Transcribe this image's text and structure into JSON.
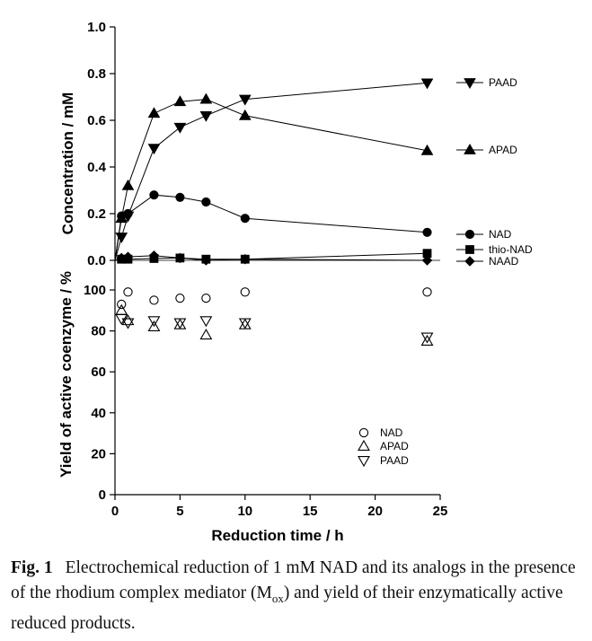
{
  "chart_data": [
    {
      "type": "line",
      "panel": "top",
      "ylabel": "Concentration / mM",
      "xlim": [
        0,
        25
      ],
      "ylim": [
        0,
        1.0
      ],
      "yticks": [
        "0.0",
        "0.2",
        "0.4",
        "0.6",
        "0.8",
        "1.0"
      ],
      "grid": false,
      "series": [
        {
          "name": "PAAD",
          "marker": "triangle-down",
          "x": [
            0,
            0.5,
            1,
            3,
            5,
            7,
            10,
            24
          ],
          "y": [
            0,
            0.1,
            0.19,
            0.48,
            0.57,
            0.62,
            0.69,
            0.76
          ]
        },
        {
          "name": "APAD",
          "marker": "triangle-up",
          "x": [
            0,
            0.5,
            1,
            3,
            5,
            7,
            10,
            24
          ],
          "y": [
            0,
            0.18,
            0.32,
            0.63,
            0.68,
            0.69,
            0.62,
            0.47
          ]
        },
        {
          "name": "NAD",
          "marker": "circle",
          "x": [
            0,
            0.5,
            1,
            3,
            5,
            7,
            10,
            24
          ],
          "y": [
            0,
            0.19,
            0.2,
            0.28,
            0.27,
            0.25,
            0.18,
            0.12
          ]
        },
        {
          "name": "thio-NAD",
          "marker": "square",
          "x": [
            0,
            0.5,
            1,
            3,
            5,
            7,
            10,
            24
          ],
          "y": [
            0,
            0.005,
            0.005,
            0.008,
            0.01,
            0.005,
            0.005,
            0.03
          ]
        },
        {
          "name": "NAAD",
          "marker": "diamond",
          "x": [
            0,
            0.5,
            1,
            3,
            5,
            7,
            10,
            24
          ],
          "y": [
            0,
            0.01,
            0.015,
            0.02,
            0.01,
            0.0,
            0.005,
            0.0
          ]
        }
      ]
    },
    {
      "type": "scatter",
      "panel": "bottom",
      "title": "",
      "xlabel": "Reduction time / h",
      "ylabel": "Yield of active coenzyme / %",
      "xlim": [
        0,
        25
      ],
      "ylim": [
        0,
        110
      ],
      "xticks": [
        "0",
        "5",
        "10",
        "15",
        "20",
        "25"
      ],
      "yticks": [
        "0",
        "20",
        "40",
        "60",
        "80",
        "100"
      ],
      "legend_position": "bottom-right",
      "series": [
        {
          "name": "NAD",
          "marker": "circle-open",
          "x": [
            0.5,
            1,
            3,
            5,
            7,
            10,
            24
          ],
          "y": [
            93,
            99,
            95,
            96,
            96,
            99,
            99
          ]
        },
        {
          "name": "APAD",
          "marker": "triangle-up-open",
          "x": [
            0.5,
            1,
            3,
            5,
            7,
            10,
            24
          ],
          "y": [
            90,
            85,
            82,
            83,
            78,
            83,
            75
          ]
        },
        {
          "name": "PAAD",
          "marker": "triangle-down-open",
          "x": [
            0.5,
            1,
            3,
            5,
            7,
            10,
            24
          ],
          "y": [
            86,
            84,
            85,
            84,
            85,
            84,
            77
          ]
        }
      ]
    }
  ],
  "caption": {
    "label": "Fig. 1",
    "text_before_sub": "Electrochemical reduction of 1 mM NAD and its analogs in the presence of the rhodium complex mediator (M",
    "sub": "ox",
    "text_after_sub": ") and yield of their enzymatically active reduced products."
  }
}
